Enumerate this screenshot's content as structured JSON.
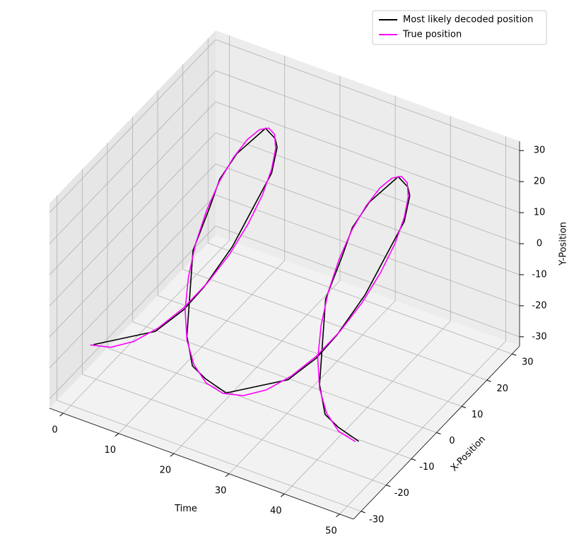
{
  "chart_data": {
    "type": "line3d",
    "xlabel": "Time",
    "ylabel": "X-Position",
    "zlabel": "Y-Position",
    "xlim": [
      -2.5,
      52.5
    ],
    "ylim": [
      -33,
      33
    ],
    "zlim": [
      -33,
      33
    ],
    "xticks": [
      0,
      10,
      20,
      30,
      40,
      50
    ],
    "yticks": [
      -30,
      -20,
      -10,
      0,
      10,
      20,
      30
    ],
    "zticks": [
      -30,
      -20,
      -10,
      0,
      10,
      20,
      30
    ],
    "grid": true,
    "legend": "upper right",
    "x": [
      0,
      1,
      2,
      3,
      4,
      5,
      6,
      7,
      8,
      9,
      10,
      11,
      12,
      13,
      14,
      15,
      16,
      17,
      18,
      19,
      20,
      21,
      22,
      23,
      24,
      25,
      26,
      27,
      28,
      29,
      30,
      31,
      32,
      33,
      34,
      35,
      36,
      37,
      38,
      39,
      40,
      41,
      42,
      43,
      44,
      45,
      46,
      47,
      48
    ],
    "series": [
      {
        "name": "Most likely decoded position",
        "color": "#000000",
        "y": [
          -21,
          -15,
          -9,
          -3,
          6,
          12,
          21,
          24,
          27,
          30,
          30,
          27,
          21,
          15,
          9,
          3,
          -6,
          -12,
          -21,
          -24,
          -27,
          -30,
          -30,
          -27,
          -21,
          -15,
          -9,
          -3,
          6,
          12,
          21,
          24,
          27,
          30,
          30,
          27,
          21,
          15,
          9,
          3,
          -6,
          -12,
          -21,
          -24,
          -27,
          -30,
          -30,
          -27,
          -21
        ],
        "z": [
          -21,
          -24,
          -27,
          -30,
          -30,
          -27,
          -21,
          -15,
          -9,
          -3,
          6,
          12,
          21,
          24,
          27,
          30,
          30,
          27,
          21,
          15,
          9,
          3,
          -6,
          -12,
          -21,
          -24,
          -27,
          -30,
          -30,
          -27,
          -21,
          -15,
          -9,
          -3,
          6,
          12,
          21,
          24,
          27,
          30,
          30,
          27,
          21,
          15,
          9,
          3,
          -6,
          -12,
          -21
        ]
      },
      {
        "name": "True position",
        "color": "#ff00ff",
        "y": [
          -22.3,
          -16.4,
          -9.4,
          -1.7,
          6.1,
          13.4,
          19.9,
          25.0,
          28.5,
          30.0,
          29.4,
          26.8,
          22.3,
          16.4,
          9.4,
          1.7,
          -6.1,
          -13.4,
          -19.9,
          -25.0,
          -28.5,
          -30.0,
          -29.4,
          -26.8,
          -22.3,
          -16.4,
          -9.4,
          -1.7,
          6.1,
          13.4,
          19.9,
          25.0,
          28.5,
          30.0,
          29.4,
          26.8,
          22.3,
          16.4,
          9.4,
          1.7,
          -6.1,
          -13.4,
          -19.9,
          -25.0,
          -28.5,
          -30.0,
          -29.4,
          -26.8,
          -22.3
        ],
        "z": [
          -20.0,
          -25.1,
          -28.5,
          -29.9,
          -29.4,
          -26.8,
          -22.5,
          -16.5,
          -9.5,
          -1.7,
          6.1,
          13.5,
          20.0,
          25.1,
          28.5,
          29.9,
          29.4,
          26.8,
          22.5,
          16.5,
          9.5,
          1.7,
          -6.1,
          -13.5,
          -20.0,
          -25.1,
          -28.5,
          -29.9,
          -29.4,
          -26.8,
          -22.5,
          -16.5,
          -9.5,
          -1.7,
          6.1,
          13.5,
          20.0,
          25.1,
          28.5,
          29.9,
          29.4,
          26.8,
          22.5,
          16.5,
          9.5,
          1.7,
          -6.1,
          -13.5,
          -20.0
        ]
      }
    ]
  }
}
